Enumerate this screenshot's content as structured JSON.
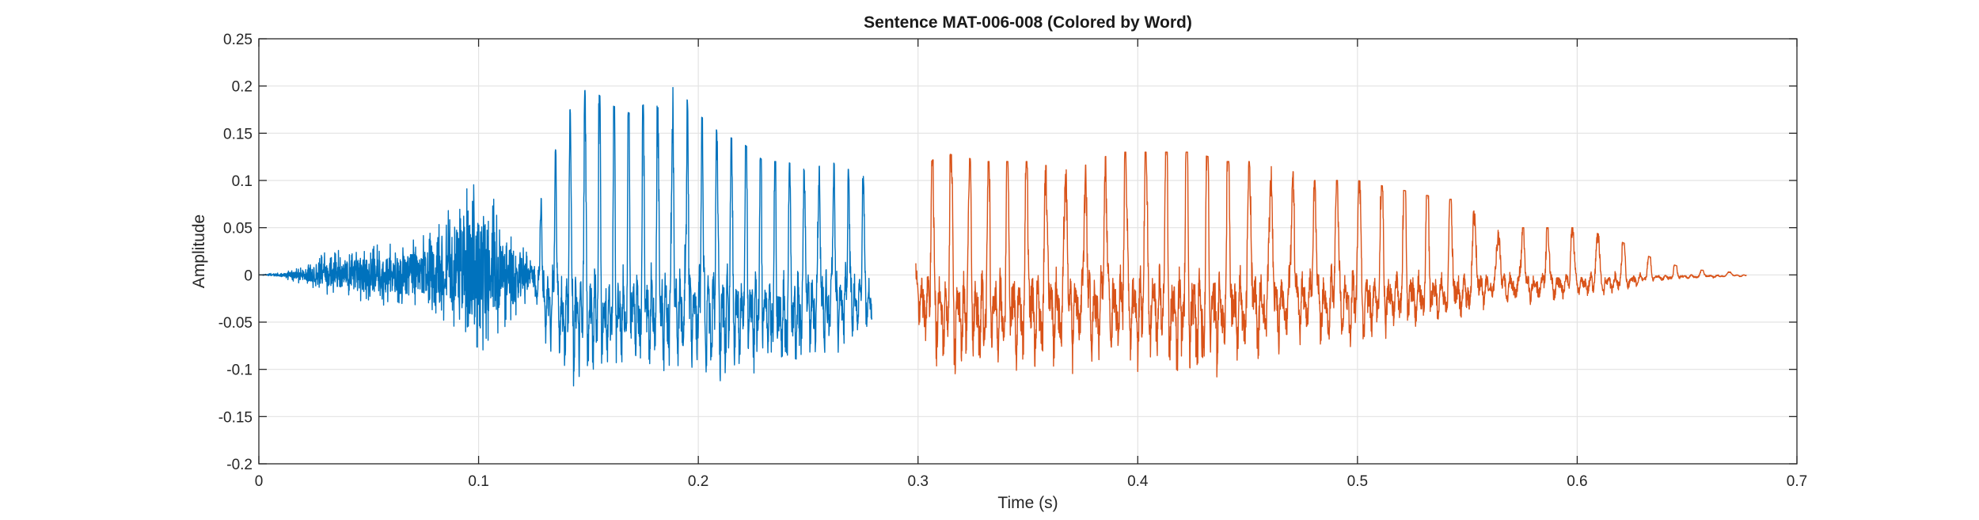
{
  "chart_data": {
    "type": "line",
    "title": "Sentence MAT-006-008 (Colored by Word)",
    "xlabel": "Time (s)",
    "ylabel": "Amplitude",
    "xlim": [
      0,
      0.7
    ],
    "ylim": [
      -0.2,
      0.25
    ],
    "xticks": [
      0,
      0.1,
      0.2,
      0.3,
      0.4,
      0.5,
      0.6,
      0.7
    ],
    "xtick_labels": [
      "0",
      "0.1",
      "0.2",
      "0.3",
      "0.4",
      "0.5",
      "0.6",
      "0.7"
    ],
    "yticks": [
      -0.2,
      -0.15,
      -0.1,
      -0.05,
      0,
      0.05,
      0.1,
      0.15,
      0.2,
      0.25
    ],
    "ytick_labels": [
      "-0.2",
      "-0.15",
      "-0.1",
      "-0.05",
      "0",
      "0.05",
      "0.1",
      "0.15",
      "0.2",
      "0.25"
    ],
    "grid": true,
    "series": [
      {
        "color": "#0072BD",
        "t_range": [
          0,
          0.279
        ],
        "envelope": [
          [
            0.0,
            0.0,
            0.0
          ],
          [
            0.01,
            0.003,
            -0.003
          ],
          [
            0.02,
            0.008,
            -0.01
          ],
          [
            0.03,
            0.025,
            -0.02
          ],
          [
            0.05,
            0.03,
            -0.03
          ],
          [
            0.07,
            0.04,
            -0.04
          ],
          [
            0.08,
            0.05,
            -0.04
          ],
          [
            0.09,
            0.09,
            -0.06
          ],
          [
            0.1,
            0.1,
            -0.09
          ],
          [
            0.105,
            0.095,
            -0.07
          ],
          [
            0.11,
            0.07,
            -0.06
          ],
          [
            0.12,
            0.03,
            -0.04
          ],
          [
            0.125,
            0.015,
            -0.02
          ],
          [
            0.128,
            0.08,
            -0.08
          ],
          [
            0.14,
            0.17,
            -0.14
          ],
          [
            0.15,
            0.2,
            -0.15
          ],
          [
            0.16,
            0.18,
            -0.13
          ],
          [
            0.17,
            0.17,
            -0.14
          ],
          [
            0.18,
            0.19,
            -0.14
          ],
          [
            0.19,
            0.2,
            -0.15
          ],
          [
            0.2,
            0.17,
            -0.14
          ],
          [
            0.21,
            0.15,
            -0.14
          ],
          [
            0.22,
            0.14,
            -0.13
          ],
          [
            0.23,
            0.12,
            -0.13
          ],
          [
            0.24,
            0.12,
            -0.15
          ],
          [
            0.25,
            0.11,
            -0.12
          ],
          [
            0.26,
            0.12,
            -0.11
          ],
          [
            0.27,
            0.11,
            -0.09
          ],
          [
            0.279,
            0.1,
            -0.08
          ]
        ]
      },
      {
        "color": "#D95319",
        "t_range": [
          0.299,
          0.677
        ],
        "envelope": [
          [
            0.299,
            0.05,
            -0.03
          ],
          [
            0.302,
            0.11,
            -0.1
          ],
          [
            0.31,
            0.13,
            -0.13
          ],
          [
            0.33,
            0.12,
            -0.14
          ],
          [
            0.35,
            0.12,
            -0.13
          ],
          [
            0.37,
            0.11,
            -0.12
          ],
          [
            0.39,
            0.13,
            -0.12
          ],
          [
            0.41,
            0.13,
            -0.13
          ],
          [
            0.425,
            0.13,
            -0.15
          ],
          [
            0.44,
            0.12,
            -0.13
          ],
          [
            0.46,
            0.12,
            -0.11
          ],
          [
            0.48,
            0.1,
            -0.1
          ],
          [
            0.5,
            0.1,
            -0.1
          ],
          [
            0.52,
            0.09,
            -0.08
          ],
          [
            0.54,
            0.08,
            -0.07
          ],
          [
            0.55,
            0.08,
            -0.06
          ],
          [
            0.56,
            0.05,
            -0.04
          ],
          [
            0.58,
            0.05,
            -0.04
          ],
          [
            0.6,
            0.05,
            -0.03
          ],
          [
            0.615,
            0.04,
            -0.03
          ],
          [
            0.625,
            0.03,
            -0.02
          ],
          [
            0.632,
            0.02,
            -0.01
          ],
          [
            0.65,
            0.006,
            -0.006
          ],
          [
            0.677,
            0.002,
            -0.002
          ]
        ]
      }
    ]
  }
}
